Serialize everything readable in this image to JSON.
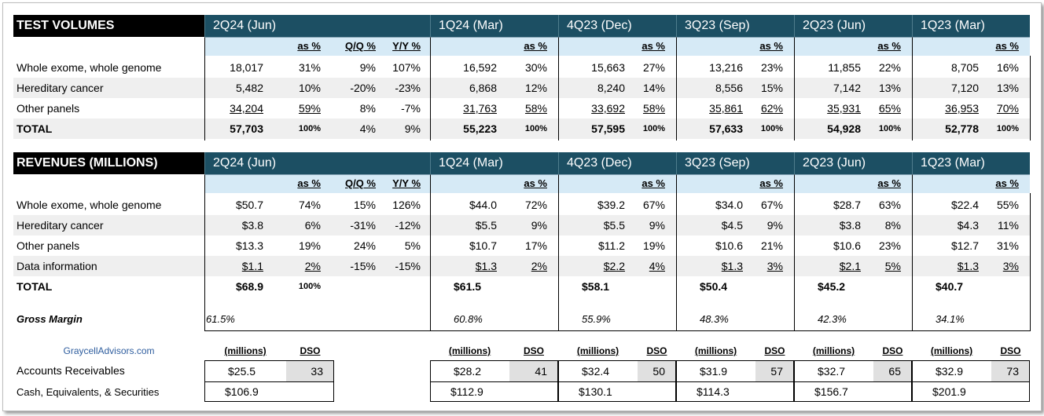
{
  "columns": [
    "2Q24 (Jun)",
    "1Q24 (Mar)",
    "4Q23 (Dec)",
    "3Q23 (Sep)",
    "2Q23 (Jun)",
    "1Q23 (Mar)"
  ],
  "sub_headers": {
    "as_pct": "as %",
    "qq": "Q/Q %",
    "yy": "Y/Y %",
    "millions": "(millions)",
    "dso": "DSO"
  },
  "volumes": {
    "title": "TEST VOLUMES",
    "rows": [
      {
        "label": "Whole exome, whole genome",
        "cur": [
          "18,017",
          "31%",
          "9%",
          "107%"
        ],
        "hist": [
          [
            "16,592",
            "30%"
          ],
          [
            "15,663",
            "27%"
          ],
          [
            "13,216",
            "23%"
          ],
          [
            "11,855",
            "22%"
          ],
          [
            "8,705",
            "16%"
          ]
        ]
      },
      {
        "label": "Hereditary cancer",
        "cur": [
          "5,482",
          "10%",
          "-20%",
          "-23%"
        ],
        "hist": [
          [
            "6,868",
            "12%"
          ],
          [
            "8,240",
            "14%"
          ],
          [
            "8,556",
            "15%"
          ],
          [
            "7,142",
            "13%"
          ],
          [
            "7,120",
            "13%"
          ]
        ]
      },
      {
        "label": "Other panels",
        "cur": [
          "34,204",
          "59%",
          "8%",
          "-7%"
        ],
        "hist": [
          [
            "31,763",
            "58%"
          ],
          [
            "33,692",
            "58%"
          ],
          [
            "35,861",
            "62%"
          ],
          [
            "35,931",
            "65%"
          ],
          [
            "36,953",
            "70%"
          ]
        ]
      }
    ],
    "total": {
      "label": "TOTAL",
      "cur": [
        "57,703",
        "100%",
        "4%",
        "9%"
      ],
      "hist": [
        [
          "55,223",
          "100%"
        ],
        [
          "57,595",
          "100%"
        ],
        [
          "57,633",
          "100%"
        ],
        [
          "54,928",
          "100%"
        ],
        [
          "52,778",
          "100%"
        ]
      ]
    }
  },
  "revenues": {
    "title": "REVENUES (MILLIONS)",
    "rows": [
      {
        "label": "Whole exome, whole genome",
        "cur": [
          "$50.7",
          "74%",
          "15%",
          "126%"
        ],
        "hist": [
          [
            "$44.0",
            "72%"
          ],
          [
            "$39.2",
            "67%"
          ],
          [
            "$34.0",
            "67%"
          ],
          [
            "$28.7",
            "63%"
          ],
          [
            "$22.4",
            "55%"
          ]
        ]
      },
      {
        "label": "Hereditary cancer",
        "cur": [
          "$3.8",
          "6%",
          "-31%",
          "-12%"
        ],
        "hist": [
          [
            "$5.5",
            "9%"
          ],
          [
            "$5.5",
            "9%"
          ],
          [
            "$4.5",
            "9%"
          ],
          [
            "$3.8",
            "8%"
          ],
          [
            "$4.3",
            "11%"
          ]
        ]
      },
      {
        "label": "Other panels",
        "cur": [
          "$13.3",
          "19%",
          "24%",
          "5%"
        ],
        "hist": [
          [
            "$10.7",
            "17%"
          ],
          [
            "$11.2",
            "19%"
          ],
          [
            "$10.6",
            "21%"
          ],
          [
            "$10.6",
            "23%"
          ],
          [
            "$12.7",
            "31%"
          ]
        ]
      },
      {
        "label": "Data information",
        "cur": [
          "$1.1",
          "2%",
          "-15%",
          "-15%"
        ],
        "hist": [
          [
            "$1.3",
            "2%"
          ],
          [
            "$2.2",
            "4%"
          ],
          [
            "$1.3",
            "3%"
          ],
          [
            "$2.1",
            "5%"
          ],
          [
            "$1.3",
            "3%"
          ]
        ]
      }
    ],
    "total": {
      "label": "TOTAL",
      "cur": [
        "$68.9",
        "100%"
      ],
      "hist": [
        "$61.5",
        "$58.1",
        "$50.4",
        "$45.2",
        "$40.7"
      ]
    },
    "gross_margin": {
      "label": "Gross Margin",
      "values": [
        "61.5%",
        "60.8%",
        "55.9%",
        "48.3%",
        "42.3%",
        "34.1%"
      ]
    }
  },
  "balance": {
    "source": "GraycellAdvisors.com",
    "ar": {
      "label": "Accounts Receivables",
      "values": [
        [
          "$25.5",
          "33"
        ],
        [
          "$28.2",
          "41"
        ],
        [
          "$32.4",
          "50"
        ],
        [
          "$31.9",
          "57"
        ],
        [
          "$32.7",
          "65"
        ],
        [
          "$32.9",
          "73"
        ]
      ]
    },
    "cash": {
      "label": "Cash, Equivalents, & Securities",
      "values": [
        "$106.9",
        "$112.9",
        "$130.1",
        "$114.3",
        "$156.7",
        "$201.9"
      ]
    }
  }
}
